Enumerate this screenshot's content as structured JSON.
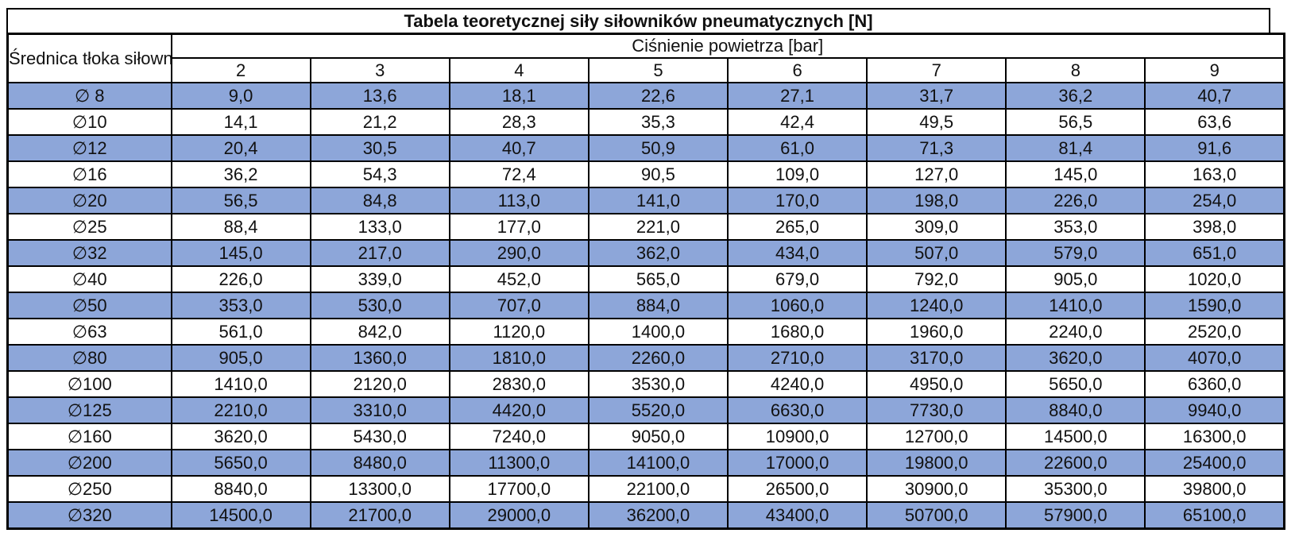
{
  "title": "Tabela teoretycznej siły siłowników pneumatycznych [N]",
  "table": {
    "diameter_header": "Średnica tłoka siłownika",
    "pressure_header": "Ciśnienie powietrza [bar]",
    "pressure_values": [
      "2",
      "3",
      "4",
      "5",
      "6",
      "7",
      "8",
      "9"
    ],
    "rows": [
      {
        "label": "∅ 8",
        "values": [
          "9,0",
          "13,6",
          "18,1",
          "22,6",
          "27,1",
          "31,7",
          "36,2",
          "40,7"
        ]
      },
      {
        "label": "∅10",
        "values": [
          "14,1",
          "21,2",
          "28,3",
          "35,3",
          "42,4",
          "49,5",
          "56,5",
          "63,6"
        ]
      },
      {
        "label": "∅12",
        "values": [
          "20,4",
          "30,5",
          "40,7",
          "50,9",
          "61,0",
          "71,3",
          "81,4",
          "91,6"
        ]
      },
      {
        "label": "∅16",
        "values": [
          "36,2",
          "54,3",
          "72,4",
          "90,5",
          "109,0",
          "127,0",
          "145,0",
          "163,0"
        ]
      },
      {
        "label": "∅20",
        "values": [
          "56,5",
          "84,8",
          "113,0",
          "141,0",
          "170,0",
          "198,0",
          "226,0",
          "254,0"
        ]
      },
      {
        "label": "∅25",
        "values": [
          "88,4",
          "133,0",
          "177,0",
          "221,0",
          "265,0",
          "309,0",
          "353,0",
          "398,0"
        ]
      },
      {
        "label": "∅32",
        "values": [
          "145,0",
          "217,0",
          "290,0",
          "362,0",
          "434,0",
          "507,0",
          "579,0",
          "651,0"
        ]
      },
      {
        "label": "∅40",
        "values": [
          "226,0",
          "339,0",
          "452,0",
          "565,0",
          "679,0",
          "792,0",
          "905,0",
          "1020,0"
        ]
      },
      {
        "label": "∅50",
        "values": [
          "353,0",
          "530,0",
          "707,0",
          "884,0",
          "1060,0",
          "1240,0",
          "1410,0",
          "1590,0"
        ]
      },
      {
        "label": "∅63",
        "values": [
          "561,0",
          "842,0",
          "1120,0",
          "1400,0",
          "1680,0",
          "1960,0",
          "2240,0",
          "2520,0"
        ]
      },
      {
        "label": "∅80",
        "values": [
          "905,0",
          "1360,0",
          "1810,0",
          "2260,0",
          "2710,0",
          "3170,0",
          "3620,0",
          "4070,0"
        ]
      },
      {
        "label": "∅100",
        "values": [
          "1410,0",
          "2120,0",
          "2830,0",
          "3530,0",
          "4240,0",
          "4950,0",
          "5650,0",
          "6360,0"
        ]
      },
      {
        "label": "∅125",
        "values": [
          "2210,0",
          "3310,0",
          "4420,0",
          "5520,0",
          "6630,0",
          "7730,0",
          "8840,0",
          "9940,0"
        ]
      },
      {
        "label": "∅160",
        "values": [
          "3620,0",
          "5430,0",
          "7240,0",
          "9050,0",
          "10900,0",
          "12700,0",
          "14500,0",
          "16300,0"
        ]
      },
      {
        "label": "∅200",
        "values": [
          "5650,0",
          "8480,0",
          "11300,0",
          "14100,0",
          "17000,0",
          "19800,0",
          "22600,0",
          "25400,0"
        ]
      },
      {
        "label": "∅250",
        "values": [
          "8840,0",
          "13300,0",
          "17700,0",
          "22100,0",
          "26500,0",
          "30900,0",
          "35300,0",
          "39800,0"
        ]
      },
      {
        "label": "∅320",
        "values": [
          "14500,0",
          "21700,0",
          "29000,0",
          "36200,0",
          "43400,0",
          "50700,0",
          "57900,0",
          "65100,0"
        ]
      }
    ]
  },
  "colors": {
    "row_alt_background": "#8DA6D9",
    "row_default_background": "#FFFFFF",
    "border": "#000000",
    "text": "#111111"
  }
}
